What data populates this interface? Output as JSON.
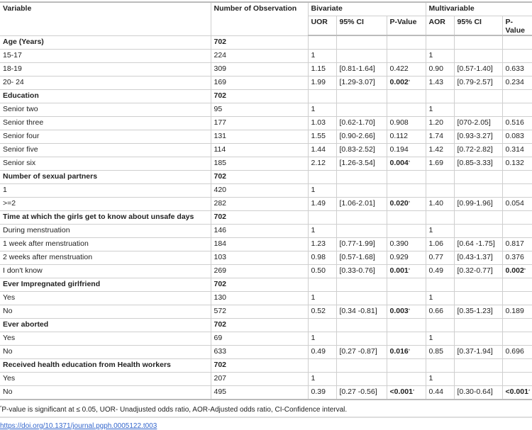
{
  "header": {
    "variable": "Variable",
    "observations": "Number of Observation",
    "bivariate": "Bivariate",
    "multivariable": "Multivariable",
    "uor": "UOR",
    "ci1": "95% CI",
    "p1": "P-Value",
    "aor": "AOR",
    "ci2": "95% CI",
    "p2": "P-Value"
  },
  "rows": [
    {
      "section": true,
      "label": "Age (Years)",
      "n": "702"
    },
    {
      "label": "15-17",
      "n": "224",
      "uor": "1",
      "aor": "1"
    },
    {
      "label": "18-19",
      "n": "309",
      "uor": "1.15",
      "ci1": "[0.81-1.64]",
      "p1": "0.422",
      "aor": "0.90",
      "ci2": "[0.57-1.40]",
      "p2": "0.633"
    },
    {
      "label": "20- 24",
      "n": "169",
      "uor": "1.99",
      "ci1": "[1.29-3.07]",
      "p1": "0.002",
      "p1sig": true,
      "aor": "1.43",
      "ci2": "[0.79-2.57]",
      "p2": "0.234"
    },
    {
      "section": true,
      "label": "Education",
      "n": "702"
    },
    {
      "label": "Senior two",
      "n": "95",
      "uor": "1",
      "aor": "1"
    },
    {
      "label": "Senior three",
      "n": "177",
      "uor": "1.03",
      "ci1": "[0.62-1.70]",
      "p1": "0.908",
      "aor": "1.20",
      "ci2": "[070-2.05]",
      "p2": "0.516"
    },
    {
      "label": "Senior four",
      "n": "131",
      "uor": "1.55",
      "ci1": "[0.90-2.66]",
      "p1": "0.112",
      "aor": "1.74",
      "ci2": "[0.93-3.27]",
      "p2": "0.083"
    },
    {
      "label": "Senior five",
      "n": "114",
      "uor": "1.44",
      "ci1": "[0.83-2.52]",
      "p1": "0.194",
      "aor": "1.42",
      "ci2": "[0.72-2.82]",
      "p2": "0.314"
    },
    {
      "label": "Senior six",
      "n": "185",
      "uor": "2.12",
      "ci1": "[1.26-3.54]",
      "p1": "0.004",
      "p1sig": true,
      "aor": "1.69",
      "ci2": "[0.85-3.33]",
      "p2": "0.132"
    },
    {
      "section": true,
      "label": "Number of sexual partners",
      "n": "702"
    },
    {
      "label": "1",
      "n": "420",
      "uor": "1"
    },
    {
      "label": ">=2",
      "n": "282",
      "uor": "1.49",
      "ci1": "[1.06-2.01]",
      "p1": "0.020",
      "p1sig": true,
      "aor": "1.40",
      "ci2": "[0.99-1.96]",
      "p2": "0.054"
    },
    {
      "section": true,
      "label": "Time at which the girls get to know about unsafe days",
      "n": "702"
    },
    {
      "label": "During menstruation",
      "n": "146",
      "uor": "1",
      "aor": "1"
    },
    {
      "label": "1 week after menstruation",
      "n": "184",
      "uor": "1.23",
      "ci1": "[0.77-1.99]",
      "p1": "0.390",
      "aor": "1.06",
      "ci2": "[0.64 -1.75]",
      "p2": "0.817"
    },
    {
      "label": "2 weeks after menstruation",
      "n": "103",
      "uor": "0.98",
      "ci1": "[0.57-1.68]",
      "p1": "0.929",
      "aor": "0.77",
      "ci2": "[0.43-1.37]",
      "p2": "0.376"
    },
    {
      "label": "I don't know",
      "n": "269",
      "uor": "0.50",
      "ci1": "[0.33-0.76]",
      "p1": "0.001",
      "p1sig": true,
      "aor": "0.49",
      "ci2": "[0.32-0.77]",
      "p2": "0.002",
      "p2sig": true
    },
    {
      "section": true,
      "label": "Ever Impregnated girlfriend",
      "n": "702"
    },
    {
      "label": "Yes",
      "n": "130",
      "uor": "1",
      "aor": "1"
    },
    {
      "label": "No",
      "n": "572",
      "uor": "0.52",
      "ci1": "[0.34 -0.81]",
      "p1": "0.003",
      "p1sig": true,
      "aor": "0.66",
      "ci2": "[0.35-1.23]",
      "p2": "0.189"
    },
    {
      "section": true,
      "label": "Ever aborted",
      "n": "702"
    },
    {
      "label": "Yes",
      "n": "69",
      "uor": "1",
      "aor": "1"
    },
    {
      "label": "No",
      "n": "633",
      "uor": "0.49",
      "ci1": "[0.27 -0.87]",
      "p1": "0.016",
      "p1sig": true,
      "aor": "0.85",
      "ci2": "[0.37-1.94]",
      "p2": "0.696"
    },
    {
      "section": true,
      "label": "Received health education from Health workers",
      "n": "702"
    },
    {
      "label": "Yes",
      "n": "207",
      "uor": "1",
      "aor": "1"
    },
    {
      "label": "No",
      "n": "495",
      "uor": "0.39",
      "ci1": "[0.27 -0.56]",
      "p1": "<0.001",
      "p1sig": true,
      "aor": "0.44",
      "ci2": "[0.30-0.64]",
      "p2": "<0.001",
      "p2sig": true
    }
  ],
  "sig_marker": "*",
  "footnote": "P-value is significant at ≤ 0.05, UOR- Unadjusted odds ratio, AOR-Adjusted odds ratio, CI-Confidence interval.",
  "doi_link": "https://doi.org/10.1371/journal.pgph.0005122.t003"
}
